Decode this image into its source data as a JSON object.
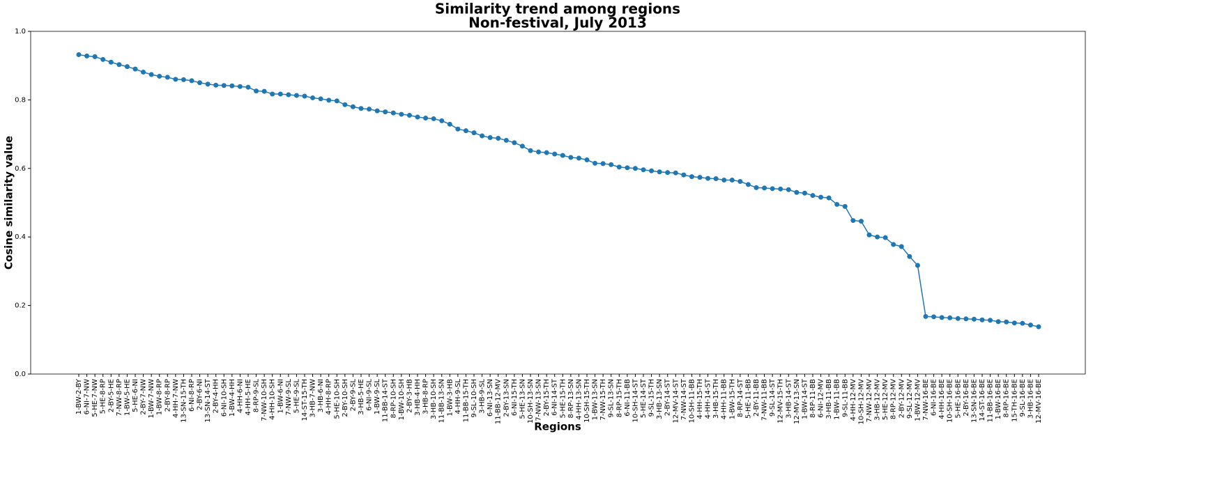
{
  "chart_data": {
    "type": "line",
    "title": "Similarity trend among regions",
    "subtitle": "Non-festival, July 2013",
    "x_label": "Regions",
    "y_label": "Cosine similarity value",
    "ylim": [
      0,
      1
    ],
    "yticks": [
      {
        "value": 0,
        "label": "0.0"
      },
      {
        "value": 0.2,
        "label": "0.2"
      },
      {
        "value": 0.4,
        "label": "0.4"
      },
      {
        "value": 0.6,
        "label": "0.6"
      },
      {
        "value": 0.8,
        "label": "0.8"
      },
      {
        "value": 1,
        "label": "1.0"
      }
    ],
    "grid": false,
    "categories": [
      "1-BW-2-BY",
      "6-NI-7-NW",
      "5-HE-7-NW",
      "5-HE-8-RP",
      "2-BY-5-HE",
      "7-NW-8-RP",
      "1-BW-5-HE",
      "5-HE-6-NI",
      "2-BY-7-NW",
      "1-BW-7-NW",
      "1-BW-8-RP",
      "2-BY-8-RP",
      "4-HH-7-NW",
      "13-SN-15-TH",
      "6-NI-8-RP",
      "2-BY-6-NI",
      "13-SN-14-ST",
      "2-BY-4-HH",
      "6-NI-10-SH",
      "1-BW-4-HH",
      "4-HH-6-NI",
      "4-HH-5-HE",
      "8-RP-9-SL",
      "7-NW-10-SH",
      "4-HH-10-SH",
      "1-BW-6-NI",
      "7-NW-9-SL",
      "5-HE-9-SL",
      "14-ST-15-TH",
      "3-HB-7-NW",
      "3-HB-6-NI",
      "4-HH-8-RP",
      "5-HE-10-SH",
      "2-BY-10-SH",
      "2-BY-9-SL",
      "3-HB-5-HE",
      "6-NI-9-SL",
      "1-BW-9-SL",
      "11-BB-14-ST",
      "8-RP-10-SH",
      "1-BW-10-SH",
      "2-BY-3-HB",
      "3-HB-4-HH",
      "3-HB-8-RP",
      "3-HB-10-SH",
      "11-BB-13-SN",
      "1-BW-3-HB",
      "4-HH-9-SL",
      "11-BB-15-TH",
      "9-SL-10-SH",
      "3-HB-9-SL",
      "6-NI-13-SN",
      "11-BB-12-MV",
      "2-BY-13-SN",
      "6-NI-15-TH",
      "5-HE-13-SN",
      "10-SH-13-SN",
      "7-NW-13-SN",
      "2-BY-15-TH",
      "6-NI-14-ST",
      "5-HE-15-TH",
      "8-RP-13-SN",
      "4-HH-13-SN",
      "10-SH-15-TH",
      "1-BW-13-SN",
      "7-NW-15-TH",
      "9-SL-13-SN",
      "8-RP-15-TH",
      "6-NI-11-BB",
      "10-SH-14-ST",
      "5-HE-14-ST",
      "9-SL-15-TH",
      "3-HB-13-SN",
      "2-BY-14-ST",
      "12-MV-14-ST",
      "7-NW-14-ST",
      "10-SH-11-BB",
      "4-HH-15-TH",
      "4-HH-14-ST",
      "3-HB-15-TH",
      "4-HH-11-BB",
      "1-BW-15-TH",
      "8-RP-14-ST",
      "5-HE-11-BB",
      "2-BY-11-BB",
      "7-NW-11-BB",
      "9-SL-14-ST",
      "12-MV-15-TH",
      "3-HB-14-ST",
      "12-MV-13-SN",
      "1-BW-14-ST",
      "8-RP-11-BB",
      "6-NI-12-MV",
      "3-HB-11-BB",
      "1-BW-11-BB",
      "9-SL-11-BB",
      "4-HH-12-MV",
      "10-SH-12-MV",
      "7-NW-12-MV",
      "3-HB-12-MV",
      "5-HE-12-MV",
      "8-RP-12-MV",
      "2-BY-12-MV",
      "9-SL-12-MV",
      "1-BW-12-MV",
      "7-NW-16-BE",
      "6-NI-16-BE",
      "4-HH-16-BE",
      "10-SH-16-BE",
      "5-HE-16-BE",
      "2-BY-16-BE",
      "13-SN-16-BE",
      "14-ST-16-BE",
      "11-BB-16-BE",
      "1-BW-16-BE",
      "8-RP-16-BE",
      "15-TH-16-BE",
      "9-SL-16-BE",
      "3-HB-16-BE",
      "12-MV-16-BE"
    ],
    "series": [
      {
        "name": "Cosine similarity",
        "color": "#1f77b4",
        "values": [
          0.932,
          0.928,
          0.926,
          0.918,
          0.91,
          0.903,
          0.897,
          0.89,
          0.881,
          0.874,
          0.869,
          0.866,
          0.86,
          0.859,
          0.856,
          0.85,
          0.846,
          0.843,
          0.842,
          0.841,
          0.839,
          0.837,
          0.826,
          0.825,
          0.817,
          0.817,
          0.815,
          0.813,
          0.811,
          0.806,
          0.803,
          0.799,
          0.797,
          0.786,
          0.78,
          0.775,
          0.773,
          0.768,
          0.765,
          0.762,
          0.758,
          0.755,
          0.75,
          0.747,
          0.745,
          0.739,
          0.729,
          0.715,
          0.71,
          0.704,
          0.695,
          0.69,
          0.688,
          0.682,
          0.675,
          0.665,
          0.652,
          0.648,
          0.646,
          0.642,
          0.638,
          0.632,
          0.63,
          0.625,
          0.615,
          0.614,
          0.611,
          0.604,
          0.602,
          0.6,
          0.596,
          0.593,
          0.59,
          0.588,
          0.587,
          0.581,
          0.576,
          0.574,
          0.571,
          0.57,
          0.566,
          0.566,
          0.562,
          0.553,
          0.544,
          0.543,
          0.541,
          0.54,
          0.538,
          0.53,
          0.528,
          0.521,
          0.516,
          0.514,
          0.495,
          0.489,
          0.448,
          0.446,
          0.406,
          0.4,
          0.398,
          0.378,
          0.372,
          0.343,
          0.317,
          0.168,
          0.167,
          0.165,
          0.164,
          0.162,
          0.161,
          0.16,
          0.158,
          0.157,
          0.153,
          0.152,
          0.149,
          0.148,
          0.143,
          0.138
        ]
      }
    ]
  }
}
